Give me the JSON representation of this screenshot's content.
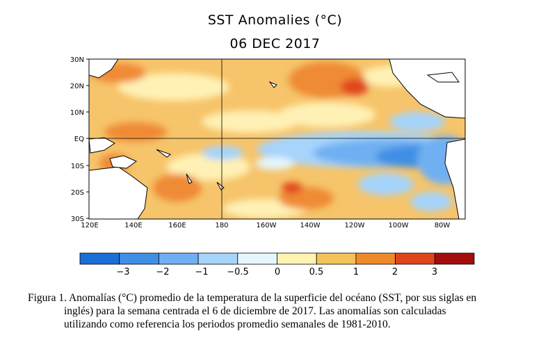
{
  "figure": {
    "title": "SST Anomalies (°C)",
    "date": "06 DEC 2017"
  },
  "map": {
    "lat_labels": [
      "30N",
      "20N",
      "10N",
      "EQ",
      "10S",
      "20S",
      "30S"
    ],
    "lon_labels": [
      "120E",
      "140E",
      "160E",
      "180",
      "160W",
      "140W",
      "120W",
      "100W",
      "80W"
    ],
    "legend": {
      "tick_labels": [
        "−3",
        "−2",
        "−1",
        "−0.5",
        "0",
        "0.5",
        "1",
        "2",
        "3"
      ],
      "colors": [
        "#1a6fd6",
        "#3f8fe6",
        "#6fb0f2",
        "#a6d4fb",
        "#e6f6ff",
        "#fff3b0",
        "#f4c25a",
        "#ee8a2a",
        "#e0461b",
        "#a30d0d"
      ]
    }
  },
  "caption": {
    "lines": [
      "Figura 1. Anomalías (°C) promedio de la temperatura de la superficie del océano (SST, por sus siglas en",
      "inglés) para la semana centrada el 6 de diciembre de 2017. Las anomalías son calculadas",
      "utilizando como referencia los periodos promedio semanales de 1981-2010."
    ]
  }
}
